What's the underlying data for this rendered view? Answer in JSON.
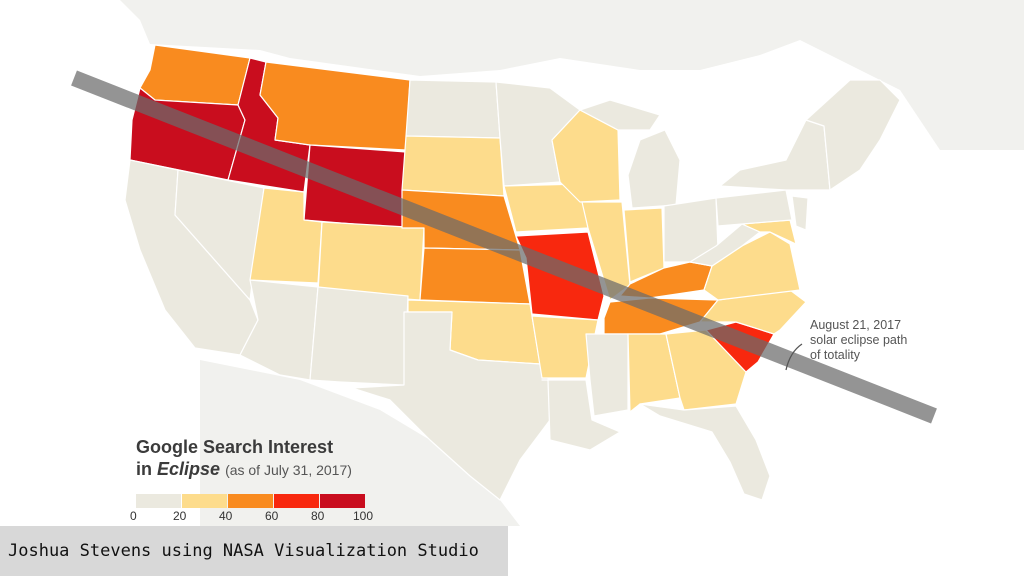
{
  "legend": {
    "title_line1": "Google Search Interest",
    "title_line2_prefix": "in ",
    "title_line2_em": "Eclipse",
    "title_note": "(as of July 31, 2017)",
    "ticks": [
      "0",
      "20",
      "40",
      "60",
      "80",
      "100"
    ],
    "colors": [
      "#ebe9df",
      "#fddc8c",
      "#f98b1f",
      "#f8280e",
      "#c90d1e"
    ]
  },
  "annotation": {
    "line1": "August 21, 2017",
    "line2": "solar eclipse path",
    "line3": "of totality"
  },
  "credit": "Joshua Stevens using NASA Visualization Studio",
  "colors": {
    "land_background": "#eeede6",
    "state_neutral": "#ebe9df",
    "eclipse_path": "#6b6b6b"
  }
}
